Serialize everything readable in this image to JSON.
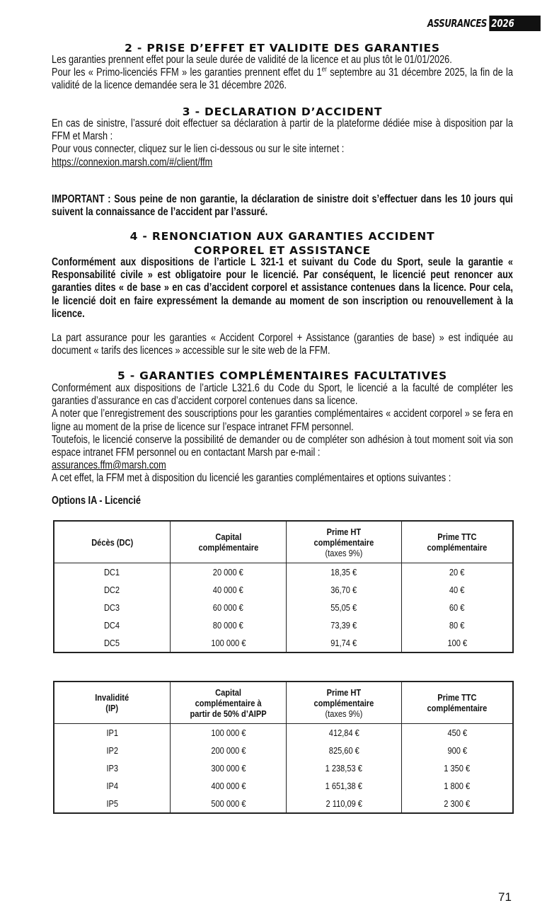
{
  "header": {
    "brand": "ASSURANCES",
    "year": "2026"
  },
  "s2": {
    "title": "2 - PRISE D’EFFET ET VALIDITE DES GARANTIES",
    "p1": "Les garanties prennent effet pour la seule durée de validité de la licence et au plus tôt le 01/01/2026.",
    "p2a": "Pour les « Primo-licenciés FFM » les garanties prennent effet du 1",
    "p2sup": "er",
    "p2b": " septembre au 31 décembre 2025, la fin de la validité de la licence demandée sera le 31 décembre 2026."
  },
  "s3": {
    "title": "3 - DECLARATION D’ACCIDENT",
    "p1": "En cas de sinistre, l’assuré doit effectuer sa déclaration à partir de la plateforme dédiée mise à disposition par la FFM et Marsh :",
    "p2": "Pour vous connecter, cliquez sur le lien ci-dessous ou sur le site internet :",
    "link": "https://connexion.marsh.com/#/client/ffm",
    "important": "IMPORTANT : Sous peine de non garantie, la déclaration de sinistre doit s’effectuer dans les 10 jours qui suivent la connaissance de l’accident par l’assuré."
  },
  "s4": {
    "title1": "4 - RENONCIATION AUX GARANTIES ACCIDENT",
    "title2": "CORPOREL ET ASSISTANCE",
    "p1": "Conformément aux dispositions de l’article L 321-1 et suivant du Code du Sport, seule la garantie « Responsabilité civile » est obligatoire pour le licencié. Par conséquent, le licencié peut renoncer aux garanties dites « de base » en cas d’accident corporel et assistance contenues dans la licence. Pour cela, le licencié doit en faire expressément la demande au moment de son inscription ou renouvellement à la licence.",
    "p2": "La part assurance pour les garanties « Accident Corporel + Assistance (garanties de base) » est indiquée au document « tarifs des licences » accessible sur le site web de la FFM."
  },
  "s5": {
    "title": "5 - GARANTIES COMPLÉMENTAIRES FACULTATIVES",
    "p1": "Conformément aux dispositions de l’article L321.6 du Code du Sport, le licencié a la faculté de compléter les garanties d’assurance en cas d’accident corporel contenues dans sa licence.",
    "p2": "A noter que l’enregistrement des souscriptions pour les garanties complémentaires « accident corporel » se fera en ligne au moment de la prise de licence sur l’espace intranet FFM personnel.",
    "p3": "Toutefois, le licencié conserve la possibilité de demander ou de compléter son adhésion à tout moment soit via son espace intranet FFM personnel ou en contactant Marsh par e-mail :",
    "email": "assurances.ffm@marsh.com",
    "p4": "A cet effet, la FFM met à disposition du licencié les garanties complémentaires et options suivantes :",
    "options_title": "Options IA - Licencié"
  },
  "table1": {
    "headers": [
      "Décès (DC)",
      "Capital",
      "complémentaire",
      "Prime HT",
      "complémentaire",
      "(taxes 9%)",
      "Prime TTC",
      "complémentaire"
    ],
    "rows": [
      [
        "DC1",
        "20 000 €",
        "18,35 €",
        "20 €"
      ],
      [
        "DC2",
        "40 000 €",
        "36,70 €",
        "40 €"
      ],
      [
        "DC3",
        "60 000 €",
        "55,05 €",
        "60 €"
      ],
      [
        "DC4",
        "80 000 €",
        "73,39 €",
        "80 €"
      ],
      [
        "DC5",
        "100 000 €",
        "91,74 €",
        "100 €"
      ]
    ]
  },
  "table2": {
    "headers": [
      "Invalidité",
      "(IP)",
      "Capital",
      "complémentaire à",
      "partir de 50% d’AIPP",
      "Prime HT",
      "complémentaire",
      "(taxes 9%)",
      "Prime TTC",
      "complémentaire"
    ],
    "rows": [
      [
        "IP1",
        "100 000 €",
        "412,84 €",
        "450 €"
      ],
      [
        "IP2",
        "200 000 €",
        "825,60 €",
        "900 €"
      ],
      [
        "IP3",
        "300 000 €",
        "1 238,53 €",
        "1 350 €"
      ],
      [
        "IP4",
        "400 000 €",
        "1 651,38 €",
        "1 800 €"
      ],
      [
        "IP5",
        "500 000 €",
        "2 110,09 €",
        "2 300 €"
      ]
    ]
  },
  "page_number": "71"
}
